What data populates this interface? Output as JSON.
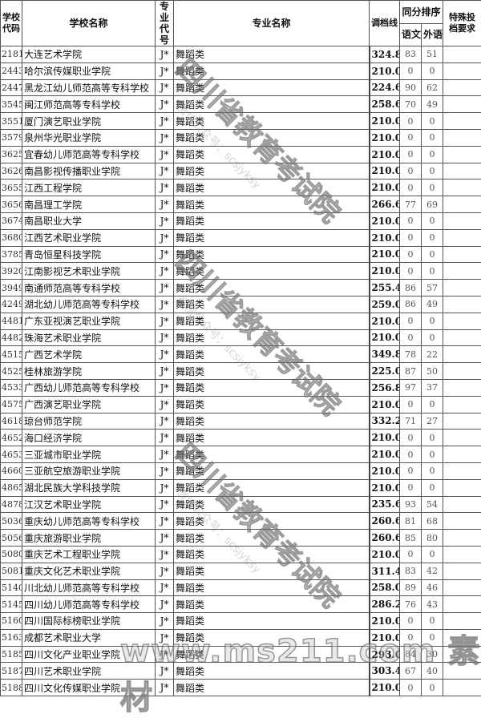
{
  "headers": {
    "school_code": "学校代码",
    "school_name": "学校名称",
    "major_code": "专业代号",
    "major_name": "专业名称",
    "cutoff": "调档线",
    "tie_rank": "同分排序",
    "chinese": "语文",
    "foreign": "外语",
    "special": "特殊投档要求"
  },
  "rows": [
    [
      "2181",
      "大连艺术学院",
      "J*",
      "舞蹈类",
      "324.80",
      "83",
      "51"
    ],
    [
      "2443",
      "哈尔滨传媒职业学院",
      "J*",
      "舞蹈类",
      "210.00",
      "0",
      "0"
    ],
    [
      "2447",
      "黑龙江幼儿师范高等专科学校",
      "J*",
      "舞蹈类",
      "224.60",
      "90",
      "62"
    ],
    [
      "3545",
      "闽江师范高等专科学校",
      "J*",
      "舞蹈类",
      "258.60",
      "70",
      "49"
    ],
    [
      "3551",
      "厦门演艺职业学院",
      "J*",
      "舞蹈类",
      "210.00",
      "0",
      "0"
    ],
    [
      "3579",
      "泉州华光职业学院",
      "J*",
      "舞蹈类",
      "210.00",
      "0",
      "0"
    ],
    [
      "3625",
      "宜春幼儿师范高等专科学校",
      "J*",
      "舞蹈类",
      "210.00",
      "0",
      "0"
    ],
    [
      "3626",
      "南昌影视传播职业学院",
      "J*",
      "舞蹈类",
      "210.00",
      "0",
      "0"
    ],
    [
      "3655",
      "江西工程学院",
      "J*",
      "舞蹈类",
      "210.00",
      "0",
      "0"
    ],
    [
      "3656",
      "南昌理工学院",
      "J*",
      "舞蹈类",
      "266.60",
      "77",
      "69"
    ],
    [
      "3674",
      "南昌职业大学",
      "J*",
      "舞蹈类",
      "210.00",
      "0",
      "0"
    ],
    [
      "3680",
      "江西艺术职业学院",
      "J*",
      "舞蹈类",
      "210.00",
      "0",
      "0"
    ],
    [
      "3785",
      "青岛恒星科技学院",
      "J*",
      "舞蹈类",
      "210.00",
      "0",
      "0"
    ],
    [
      "3920",
      "江南影视艺术职业学院",
      "J*",
      "舞蹈类",
      "210.00",
      "0",
      "0"
    ],
    [
      "3949",
      "南通师范高等专科学校",
      "J*",
      "舞蹈类",
      "255.40",
      "86",
      "57"
    ],
    [
      "4249",
      "湖北幼儿师范高等专科学校",
      "J*",
      "舞蹈类",
      "259.00",
      "86",
      "49"
    ],
    [
      "4481",
      "广东亚视演艺职业学院",
      "J*",
      "舞蹈类",
      "210.00",
      "0",
      "0"
    ],
    [
      "4482",
      "珠海艺术职业学院",
      "J*",
      "舞蹈类",
      "210.00",
      "0",
      "0"
    ],
    [
      "4515",
      "广西艺术学院",
      "J*",
      "舞蹈类",
      "349.80",
      "78",
      "22"
    ],
    [
      "4525",
      "桂林旅游学院",
      "J*",
      "舞蹈类",
      "225.00",
      "87",
      "50"
    ],
    [
      "4533",
      "广西幼儿师范高等专科学校",
      "J*",
      "舞蹈类",
      "256.80",
      "97",
      "37"
    ],
    [
      "4575",
      "广西演艺职业学院",
      "J*",
      "舞蹈类",
      "210.00",
      "0",
      "0"
    ],
    [
      "4618",
      "琼台师范学院",
      "J*",
      "舞蹈类",
      "332.20",
      "71",
      "27"
    ],
    [
      "4652",
      "海口经济学院",
      "J*",
      "舞蹈类",
      "210.00",
      "0",
      "0"
    ],
    [
      "4653",
      "三亚城市职业学院",
      "J*",
      "舞蹈类",
      "210.00",
      "0",
      "0"
    ],
    [
      "4660",
      "三亚航空旅游职业学院",
      "J*",
      "舞蹈类",
      "210.00",
      "0",
      "0"
    ],
    [
      "4865",
      "湖北民族大学科技学院",
      "J*",
      "舞蹈类",
      "210.00",
      "0",
      "0"
    ],
    [
      "4878",
      "江汉艺术职业学院",
      "J*",
      "舞蹈类",
      "235.60",
      "93",
      "54"
    ],
    [
      "5036",
      "重庆幼儿师范高等专科学校",
      "J*",
      "舞蹈类",
      "260.60",
      "81",
      "68"
    ],
    [
      "5056",
      "重庆旅游职业学院",
      "J*",
      "舞蹈类",
      "260.60",
      "85",
      "80"
    ],
    [
      "5080",
      "重庆艺术工程职业学院",
      "J*",
      "舞蹈类",
      "210.00",
      "0",
      "0"
    ],
    [
      "5081",
      "重庆文化艺术职业学院",
      "J*",
      "舞蹈类",
      "311.40",
      "83",
      "42"
    ],
    [
      "5140",
      "川北幼儿师范高等专科学校",
      "J*",
      "舞蹈类",
      "258.00",
      "89",
      "46"
    ],
    [
      "5145",
      "四川幼儿师范高等专科学校",
      "J*",
      "舞蹈类",
      "286.20",
      "76",
      "43"
    ],
    [
      "5160",
      "四川国际标榜职业学院",
      "J*",
      "舞蹈类",
      "210.00",
      "0",
      "0"
    ],
    [
      "5163",
      "成都艺术职业大学",
      "J*",
      "舞蹈类",
      "210.00",
      "0",
      "0"
    ],
    [
      "5185",
      "四川文化产业职业学院",
      "J*",
      "舞蹈类",
      "293.00",
      "84",
      "30"
    ],
    [
      "5187",
      "四川艺术职业学院",
      "J*",
      "舞蹈类",
      "303.40",
      "67",
      "40"
    ],
    [
      "5188",
      "四川文化传媒职业学院",
      "J*",
      "舞蹈类",
      "210.00",
      "0",
      "0"
    ]
  ],
  "watermark": {
    "org": "四川省教育考试院",
    "wechat": "微信公众号：scsjyksy",
    "site": "www.ms211.com 素材"
  }
}
